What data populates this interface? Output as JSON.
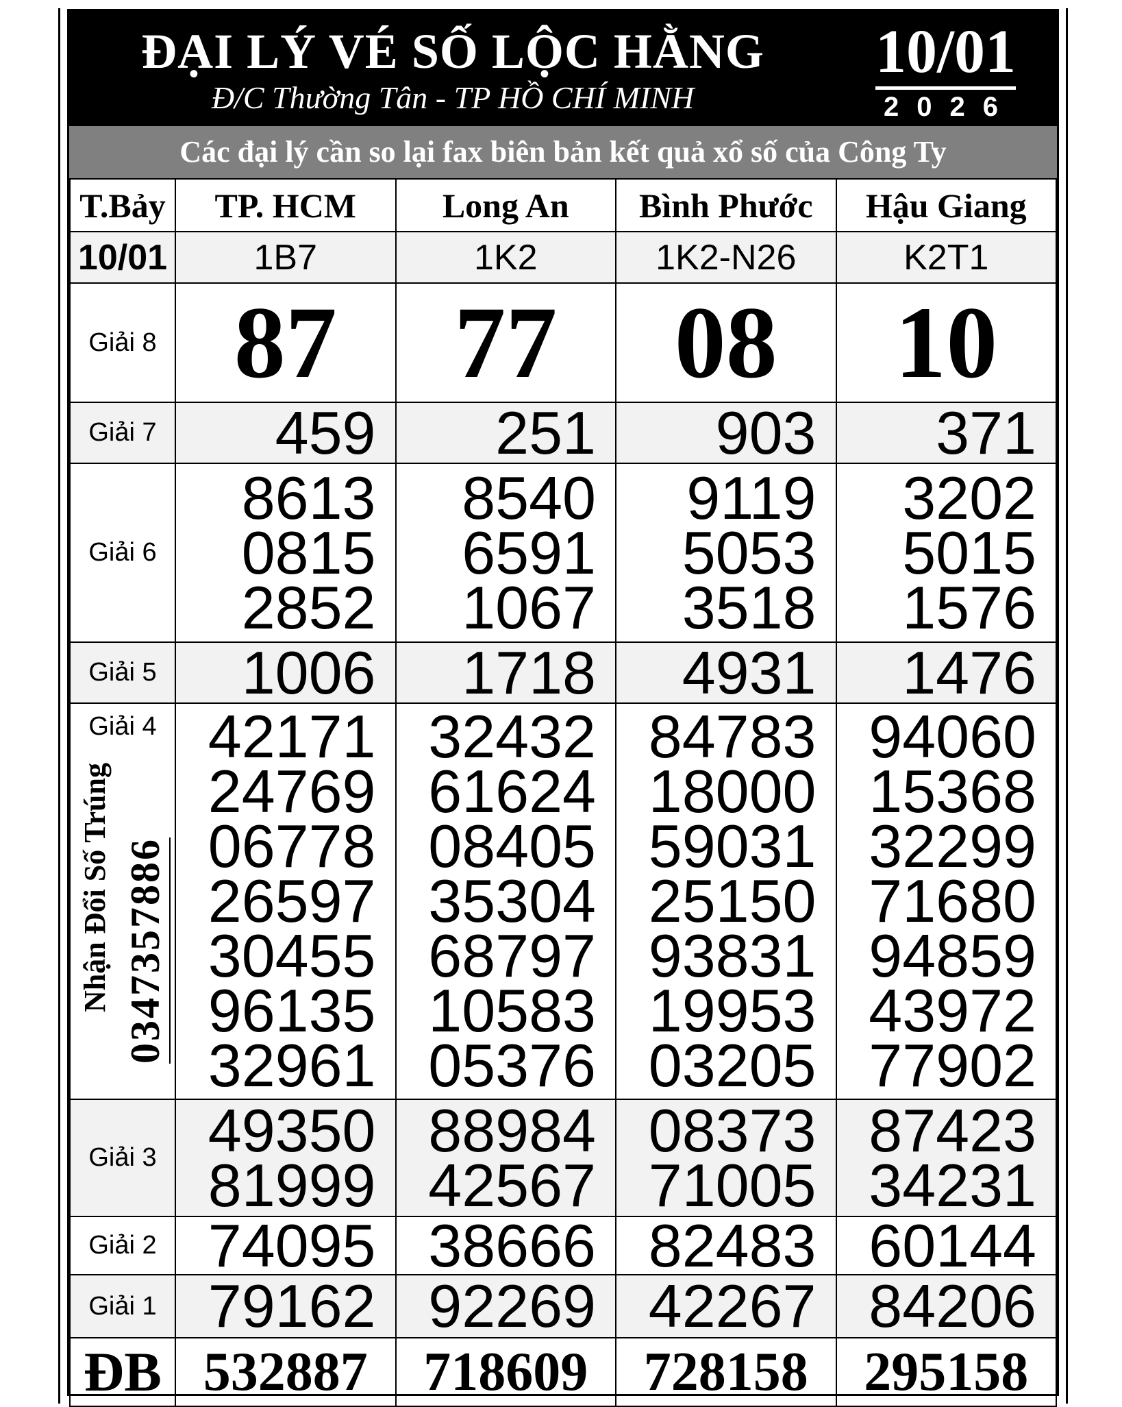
{
  "header": {
    "title": "ĐẠI LÝ VÉ SỐ LỘC HẰNG",
    "address": "Đ/C Thường Tân - TP HỒ CHÍ MINH",
    "date": "10/01",
    "year": "2026"
  },
  "notice": "Các đại lý cần so lại fax biên bản kết quả xổ số của Công Ty",
  "day": "T.Bảy",
  "day_date": "10/01",
  "provinces": [
    {
      "name": "TP. HCM",
      "code": "1B7",
      "g8": "87",
      "g7": "459",
      "g6": [
        "8613",
        "0815",
        "2852"
      ],
      "g5": "1006",
      "g4": [
        "42171",
        "24769",
        "06778",
        "26597",
        "30455",
        "96135",
        "32961"
      ],
      "g3": [
        "49350",
        "81999"
      ],
      "g2": "74095",
      "g1": "79162",
      "db": "532887"
    },
    {
      "name": "Long An",
      "code": "1K2",
      "g8": "77",
      "g7": "251",
      "g6": [
        "8540",
        "6591",
        "1067"
      ],
      "g5": "1718",
      "g4": [
        "32432",
        "61624",
        "08405",
        "35304",
        "68797",
        "10583",
        "05376"
      ],
      "g3": [
        "88984",
        "42567"
      ],
      "g2": "38666",
      "g1": "92269",
      "db": "718609"
    },
    {
      "name": "Bình Phước",
      "code": "1K2-N26",
      "g8": "08",
      "g7": "903",
      "g6": [
        "9119",
        "5053",
        "3518"
      ],
      "g5": "4931",
      "g4": [
        "84783",
        "18000",
        "59031",
        "25150",
        "93831",
        "19953",
        "03205"
      ],
      "g3": [
        "08373",
        "71005"
      ],
      "g2": "82483",
      "g1": "42267",
      "db": "728158"
    },
    {
      "name": "Hậu Giang",
      "code": "K2T1",
      "g8": "10",
      "g7": "371",
      "g6": [
        "3202",
        "5015",
        "1576"
      ],
      "g5": "1476",
      "g4": [
        "94060",
        "15368",
        "32299",
        "71680",
        "94859",
        "43972",
        "77902"
      ],
      "g3": [
        "87423",
        "34231"
      ],
      "g2": "60144",
      "g1": "84206",
      "db": "295158"
    }
  ],
  "labels": {
    "g8": "Giải 8",
    "g7": "Giải 7",
    "g6": "Giải 6",
    "g5": "Giải 5",
    "g4": "Giải 4",
    "g3": "Giải 3",
    "g2": "Giải 2",
    "g1": "Giải 1",
    "db": "ĐB"
  },
  "side": {
    "text": "Nhận Đổi Số Trúng",
    "phone": "0347357886"
  }
}
